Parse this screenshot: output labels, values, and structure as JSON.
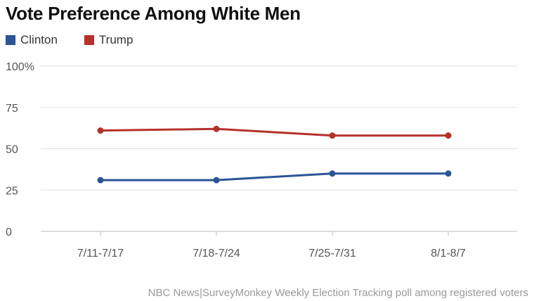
{
  "chart_data": {
    "type": "line",
    "title": "Vote Preference Among White Men",
    "categories": [
      "7/11-7/17",
      "7/18-7/24",
      "7/25-7/31",
      "8/1-8/7"
    ],
    "series": [
      {
        "name": "Clinton",
        "color": "#2a5597",
        "values": [
          31,
          31,
          35,
          35
        ]
      },
      {
        "name": "Trump",
        "color": "#b5322b",
        "values": [
          61,
          62,
          58,
          58
        ]
      }
    ],
    "ylim": [
      0,
      100
    ],
    "yticks": [
      "0",
      "25",
      "50",
      "75",
      "100%"
    ],
    "grid": true,
    "legend": "top-left",
    "source": "NBC News|SurveyMonkey Weekly Election Tracking poll among registered voters"
  }
}
